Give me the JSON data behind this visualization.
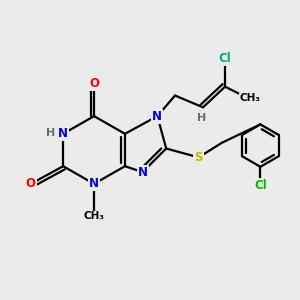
{
  "background_color": "#ebebeb",
  "atom_colors": {
    "N": "#0000dd",
    "O": "#ff0000",
    "S": "#bbbb00",
    "Cl_green": "#00aa88",
    "Cl_para": "#00bb00",
    "C": "#000000",
    "H": "#607070"
  },
  "bond_color": "#000000",
  "bond_width": 1.6,
  "figsize": [
    3.0,
    3.0
  ],
  "dpi": 100
}
